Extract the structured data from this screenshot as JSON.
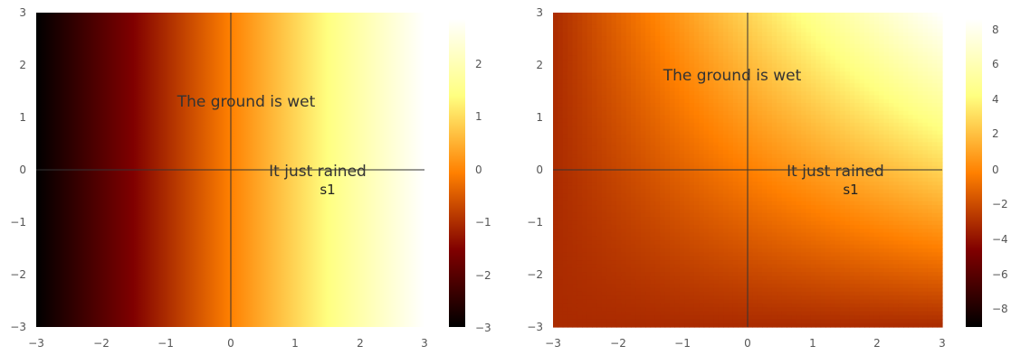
{
  "chart_data": [
    {
      "type": "heatmap",
      "title": "",
      "xlabel": "",
      "ylabel": "",
      "xlim": [
        -3,
        3
      ],
      "ylim": [
        -3,
        3
      ],
      "x_ticks": [
        "−3",
        "−2",
        "−1",
        "0",
        "1",
        "2",
        "3"
      ],
      "y_ticks": [
        "3",
        "2",
        "1",
        "0",
        "−1",
        "−2",
        "−3"
      ],
      "field": "x",
      "color_range": [
        -3,
        3
      ],
      "colormap": "afmhot",
      "colorbar_ticks": [
        "2",
        "1",
        "0",
        "−1",
        "−2",
        "−3"
      ],
      "annotations": [
        {
          "text": "The ground is wet",
          "x": 0.7,
          "y": 1.3,
          "style": "large"
        },
        {
          "text": "It just rained",
          "x": 1.4,
          "y": 0.0,
          "style": "large"
        },
        {
          "text": "s1",
          "x": 1.5,
          "y": -0.3,
          "style": "small"
        }
      ],
      "axes_lines": {
        "x": 0,
        "y": 0
      }
    },
    {
      "type": "heatmap",
      "title": "",
      "xlabel": "",
      "ylabel": "",
      "xlim": [
        -3,
        3
      ],
      "ylim": [
        -3,
        3
      ],
      "x_ticks": [
        "−3",
        "−2",
        "−1",
        "0",
        "1",
        "2",
        "3"
      ],
      "y_ticks": [
        "3",
        "2",
        "1",
        "0",
        "−1",
        "−2",
        "−3"
      ],
      "field": "x + y + x*y/3",
      "color_range": [
        -9,
        9
      ],
      "colormap": "afmhot",
      "colorbar_ticks": [
        "8",
        "6",
        "4",
        "2",
        "0",
        "−2",
        "−4",
        "−6",
        "−8"
      ],
      "annotations": [
        {
          "text": "The ground is wet",
          "x": 0.15,
          "y": 1.8,
          "style": "large"
        },
        {
          "text": "It just rained",
          "x": 1.4,
          "y": 0.0,
          "style": "large"
        },
        {
          "text": "s1",
          "x": 1.5,
          "y": -0.3,
          "style": "small"
        }
      ],
      "axes_lines": {
        "x": 0,
        "y": 0
      }
    }
  ]
}
